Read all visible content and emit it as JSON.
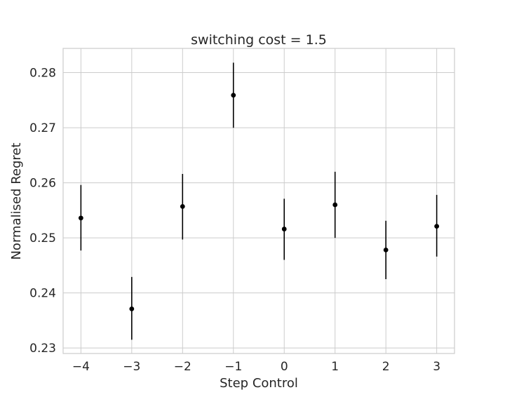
{
  "chart_data": {
    "type": "scatter",
    "title": "switching cost = 1.5",
    "xlabel": "Step Control",
    "ylabel": "Normalised Regret",
    "xlim": [
      -4.35,
      3.35
    ],
    "ylim": [
      0.229,
      0.2844
    ],
    "xticks": [
      -4,
      -3,
      -2,
      -1,
      0,
      1,
      2,
      3
    ],
    "xtick_labels": [
      "−4",
      "−3",
      "−2",
      "−1",
      "0",
      "1",
      "2",
      "3"
    ],
    "yticks": [
      0.23,
      0.24,
      0.25,
      0.26,
      0.27,
      0.28
    ],
    "ytick_labels": [
      "0.23",
      "0.24",
      "0.25",
      "0.26",
      "0.27",
      "0.28"
    ],
    "grid": true,
    "marker_color": "#000000",
    "series": [
      {
        "x": [
          -4,
          -3,
          -2,
          -1,
          0,
          1,
          2,
          3
        ],
        "y": [
          0.2536,
          0.2371,
          0.2557,
          0.2759,
          0.2516,
          0.256,
          0.2478,
          0.2521
        ],
        "y_low": [
          0.2477,
          0.2315,
          0.2497,
          0.27,
          0.246,
          0.25,
          0.2425,
          0.2466
        ],
        "y_high": [
          0.2596,
          0.2429,
          0.2616,
          0.2818,
          0.2571,
          0.262,
          0.2531,
          0.2578
        ]
      }
    ]
  }
}
